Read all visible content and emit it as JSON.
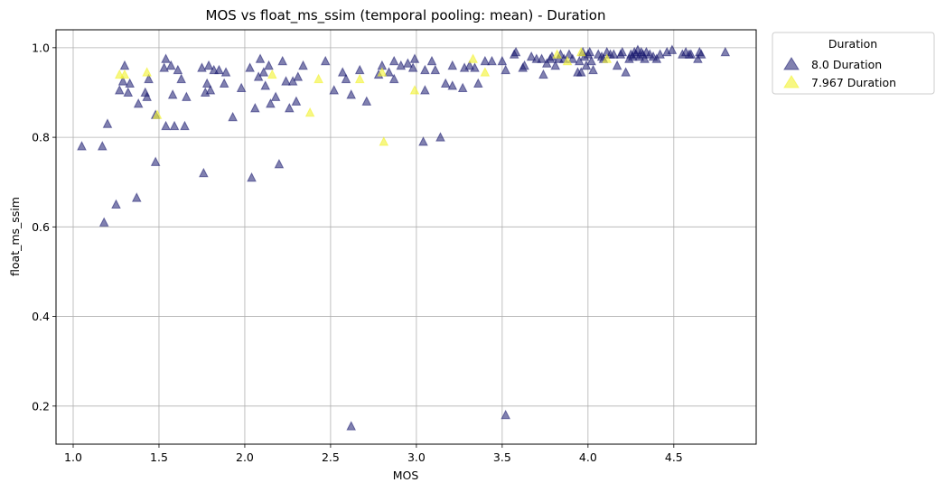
{
  "chart_data": {
    "type": "scatter",
    "title": "MOS vs float_ms_ssim (temporal pooling: mean) - Duration",
    "xlabel": "MOS",
    "ylabel": "float_ms_ssim",
    "xlim": [
      0.9,
      4.98
    ],
    "ylim": [
      0.115,
      1.04
    ],
    "xticks": [
      1.0,
      1.5,
      2.0,
      2.5,
      3.0,
      3.5,
      4.0,
      4.5
    ],
    "xtick_labels": [
      "1.0",
      "1.5",
      "2.0",
      "2.5",
      "3.0",
      "3.5",
      "4.0",
      "4.5"
    ],
    "yticks": [
      0.2,
      0.4,
      0.6,
      0.8,
      1.0
    ],
    "ytick_labels": [
      "0.2",
      "0.4",
      "0.6",
      "0.8",
      "1.0"
    ],
    "grid": true,
    "legend": {
      "title": "Duration",
      "placement": "outside-upper-right"
    },
    "series": [
      {
        "name": "8.0 Duration",
        "color": "#191970",
        "alpha": 0.55,
        "marker": "triangle-up",
        "points": [
          [
            1.05,
            0.78
          ],
          [
            1.17,
            0.78
          ],
          [
            1.18,
            0.61
          ],
          [
            1.2,
            0.83
          ],
          [
            1.25,
            0.65
          ],
          [
            1.27,
            0.905
          ],
          [
            1.29,
            0.925
          ],
          [
            1.3,
            0.96
          ],
          [
            1.32,
            0.9
          ],
          [
            1.33,
            0.92
          ],
          [
            1.37,
            0.665
          ],
          [
            1.38,
            0.875
          ],
          [
            1.42,
            0.9
          ],
          [
            1.43,
            0.89
          ],
          [
            1.44,
            0.93
          ],
          [
            1.48,
            0.745
          ],
          [
            1.48,
            0.85
          ],
          [
            1.53,
            0.955
          ],
          [
            1.54,
            0.975
          ],
          [
            1.54,
            0.825
          ],
          [
            1.57,
            0.96
          ],
          [
            1.58,
            0.895
          ],
          [
            1.59,
            0.825
          ],
          [
            1.61,
            0.95
          ],
          [
            1.63,
            0.93
          ],
          [
            1.65,
            0.825
          ],
          [
            1.66,
            0.89
          ],
          [
            1.75,
            0.955
          ],
          [
            1.76,
            0.72
          ],
          [
            1.77,
            0.9
          ],
          [
            1.78,
            0.92
          ],
          [
            1.79,
            0.96
          ],
          [
            1.8,
            0.905
          ],
          [
            1.82,
            0.95
          ],
          [
            1.85,
            0.95
          ],
          [
            1.88,
            0.92
          ],
          [
            1.89,
            0.945
          ],
          [
            1.93,
            0.845
          ],
          [
            1.98,
            0.91
          ],
          [
            2.03,
            0.955
          ],
          [
            2.04,
            0.71
          ],
          [
            2.06,
            0.865
          ],
          [
            2.08,
            0.935
          ],
          [
            2.09,
            0.975
          ],
          [
            2.11,
            0.945
          ],
          [
            2.12,
            0.915
          ],
          [
            2.14,
            0.96
          ],
          [
            2.15,
            0.875
          ],
          [
            2.18,
            0.89
          ],
          [
            2.2,
            0.74
          ],
          [
            2.22,
            0.97
          ],
          [
            2.24,
            0.925
          ],
          [
            2.26,
            0.865
          ],
          [
            2.28,
            0.925
          ],
          [
            2.3,
            0.88
          ],
          [
            2.31,
            0.935
          ],
          [
            2.34,
            0.96
          ],
          [
            2.47,
            0.97
          ],
          [
            2.52,
            0.905
          ],
          [
            2.57,
            0.945
          ],
          [
            2.59,
            0.93
          ],
          [
            2.62,
            0.155
          ],
          [
            2.62,
            0.895
          ],
          [
            2.67,
            0.95
          ],
          [
            2.71,
            0.88
          ],
          [
            2.78,
            0.94
          ],
          [
            2.8,
            0.96
          ],
          [
            2.84,
            0.945
          ],
          [
            2.87,
            0.93
          ],
          [
            2.87,
            0.97
          ],
          [
            2.91,
            0.96
          ],
          [
            2.95,
            0.965
          ],
          [
            2.98,
            0.955
          ],
          [
            2.99,
            0.975
          ],
          [
            3.04,
            0.79
          ],
          [
            3.05,
            0.905
          ],
          [
            3.05,
            0.95
          ],
          [
            3.09,
            0.97
          ],
          [
            3.11,
            0.95
          ],
          [
            3.14,
            0.8
          ],
          [
            3.17,
            0.92
          ],
          [
            3.21,
            0.96
          ],
          [
            3.21,
            0.915
          ],
          [
            3.27,
            0.91
          ],
          [
            3.28,
            0.955
          ],
          [
            3.31,
            0.96
          ],
          [
            3.34,
            0.955
          ],
          [
            3.36,
            0.92
          ],
          [
            3.4,
            0.97
          ],
          [
            3.44,
            0.97
          ],
          [
            3.5,
            0.97
          ],
          [
            3.52,
            0.18
          ],
          [
            3.52,
            0.95
          ],
          [
            3.57,
            0.985
          ],
          [
            3.58,
            0.99
          ],
          [
            3.62,
            0.955
          ],
          [
            3.63,
            0.96
          ],
          [
            3.67,
            0.98
          ],
          [
            3.7,
            0.975
          ],
          [
            3.73,
            0.975
          ],
          [
            3.74,
            0.94
          ],
          [
            3.76,
            0.965
          ],
          [
            3.78,
            0.975
          ],
          [
            3.79,
            0.98
          ],
          [
            3.81,
            0.96
          ],
          [
            3.83,
            0.975
          ],
          [
            3.84,
            0.985
          ],
          [
            3.86,
            0.975
          ],
          [
            3.89,
            0.985
          ],
          [
            3.91,
            0.975
          ],
          [
            3.94,
            0.945
          ],
          [
            3.95,
            0.97
          ],
          [
            3.96,
            0.945
          ],
          [
            3.98,
            0.98
          ],
          [
            3.99,
            0.96
          ],
          [
            4.0,
            0.985
          ],
          [
            4.01,
            0.99
          ],
          [
            4.03,
            0.95
          ],
          [
            4.06,
            0.985
          ],
          [
            4.08,
            0.98
          ],
          [
            4.09,
            0.975
          ],
          [
            4.11,
            0.99
          ],
          [
            4.13,
            0.985
          ],
          [
            4.15,
            0.985
          ],
          [
            4.17,
            0.96
          ],
          [
            4.19,
            0.985
          ],
          [
            4.2,
            0.99
          ],
          [
            4.22,
            0.945
          ],
          [
            4.24,
            0.975
          ],
          [
            4.25,
            0.985
          ],
          [
            4.26,
            0.98
          ],
          [
            4.27,
            0.99
          ],
          [
            4.28,
            0.985
          ],
          [
            4.29,
            0.995
          ],
          [
            4.3,
            0.98
          ],
          [
            4.31,
            0.99
          ],
          [
            4.32,
            0.985
          ],
          [
            4.33,
            0.975
          ],
          [
            4.34,
            0.99
          ],
          [
            4.36,
            0.985
          ],
          [
            4.38,
            0.98
          ],
          [
            4.4,
            0.975
          ],
          [
            4.42,
            0.985
          ],
          [
            4.46,
            0.99
          ],
          [
            4.49,
            0.995
          ],
          [
            4.55,
            0.985
          ],
          [
            4.57,
            0.99
          ],
          [
            4.59,
            0.985
          ],
          [
            4.6,
            0.985
          ],
          [
            4.64,
            0.975
          ],
          [
            4.65,
            0.99
          ],
          [
            4.66,
            0.985
          ],
          [
            4.8,
            0.99
          ],
          [
            4.02,
            0.97
          ],
          [
            3.97,
            0.99
          ]
        ]
      },
      {
        "name": "7.967 Duration",
        "color": "#f2f230",
        "alpha": 0.6,
        "marker": "triangle-up",
        "points": [
          [
            1.27,
            0.94
          ],
          [
            1.3,
            0.94
          ],
          [
            1.43,
            0.945
          ],
          [
            1.49,
            0.85
          ],
          [
            2.16,
            0.94
          ],
          [
            2.38,
            0.855
          ],
          [
            2.43,
            0.93
          ],
          [
            2.67,
            0.93
          ],
          [
            2.8,
            0.945
          ],
          [
            2.81,
            0.79
          ],
          [
            2.99,
            0.905
          ],
          [
            3.33,
            0.975
          ],
          [
            3.4,
            0.945
          ],
          [
            3.82,
            0.985
          ],
          [
            3.88,
            0.97
          ],
          [
            3.96,
            0.99
          ],
          [
            4.11,
            0.975
          ]
        ]
      }
    ]
  }
}
